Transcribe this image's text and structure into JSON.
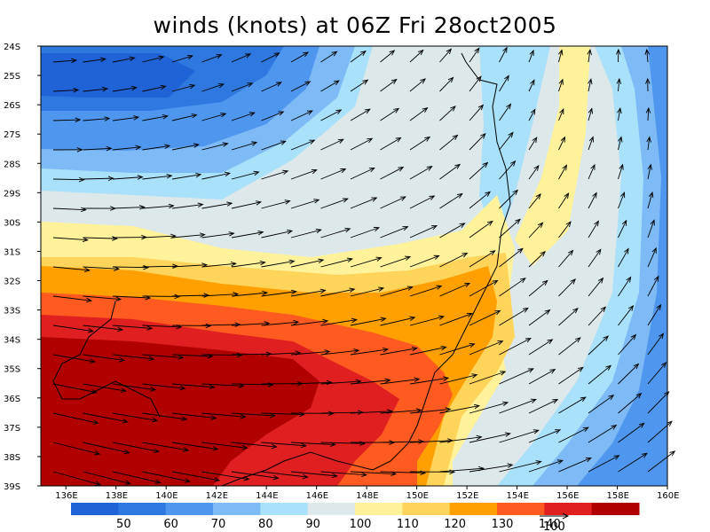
{
  "title": "winds (knots) at 06Z Fri 28oct2005",
  "lat_labels": [
    "24S",
    "25S",
    "26S",
    "27S",
    "28S",
    "29S",
    "30S",
    "31S",
    "32S",
    "33S",
    "34S",
    "35S",
    "36S",
    "37S",
    "38S",
    "39S"
  ],
  "lon_labels": [
    "136E",
    "138E",
    "140E",
    "142E",
    "144E",
    "146E",
    "148E",
    "150E",
    "152E",
    "154E",
    "156E",
    "158E",
    "160E"
  ],
  "colorbar": {
    "colors": [
      "#1f63d6",
      "#2e78e0",
      "#4f97ee",
      "#7dbaf6",
      "#a9e0fa",
      "#dde8ea",
      "#fff29a",
      "#ffd45a",
      "#ff9f00",
      "#ff5a1f",
      "#e02020",
      "#b00000"
    ],
    "labels": [
      "50",
      "60",
      "70",
      "80",
      "90",
      "100",
      "110",
      "120",
      "130",
      "140"
    ]
  },
  "reference_vector": {
    "label": "100"
  }
}
